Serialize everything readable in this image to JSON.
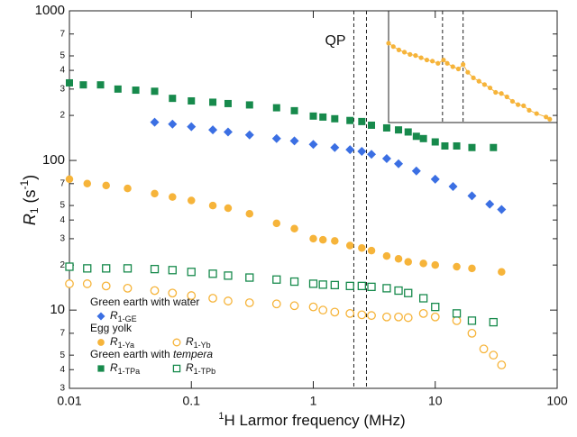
{
  "chart_data": {
    "type": "scatter",
    "log_x": true,
    "log_y": true,
    "xlabel": {
      "sup": "1",
      "main": "H Larmor frequency (MHz)"
    },
    "ylabel": {
      "main": "R",
      "sub": "1",
      "unit": " (s",
      "sup": "-1",
      "close": ")"
    },
    "xlim": [
      0.01,
      100
    ],
    "ylim": [
      3,
      1000
    ],
    "xticks": [
      0.01,
      0.1,
      1,
      10,
      100
    ],
    "yticks": [
      {
        "value": 1000,
        "label": "1000"
      },
      {
        "value": 700,
        "label": "7"
      },
      {
        "value": 500,
        "label": "5"
      },
      {
        "value": 400,
        "label": "4"
      },
      {
        "value": 300,
        "label": "3"
      },
      {
        "value": 200,
        "label": "2"
      },
      100,
      {
        "value": 70,
        "label": "7"
      },
      {
        "value": 50,
        "label": "5"
      },
      {
        "value": 40,
        "label": "4"
      },
      {
        "value": 30,
        "label": "3"
      },
      {
        "value": 20,
        "label": "2"
      },
      10,
      7,
      5,
      4,
      3
    ],
    "annotation": "QP",
    "qp_lines": [
      2.15,
      2.73
    ],
    "legend_position": "lower left",
    "groups": [
      {
        "title": "Green earth with water",
        "series": [
          {
            "name_main": "R",
            "name_sub": "1-GE",
            "marker": "diamond",
            "filled": true,
            "color": "#3b6fe3",
            "x": [
              0.05,
              0.07,
              0.1,
              0.15,
              0.2,
              0.3,
              0.5,
              0.7,
              1,
              1.5,
              2,
              2.5,
              3,
              4,
              5,
              7,
              10,
              14,
              20,
              28,
              35
            ],
            "values": [
              180,
              175,
              168,
              160,
              155,
              148,
              140,
              135,
              128,
              122,
              118,
              115,
              110,
              103,
              95,
              85,
              75,
              67,
              58,
              51,
              47
            ]
          }
        ]
      },
      {
        "title": "Egg yolk",
        "series": [
          {
            "name_main": "R",
            "name_sub": "1-Ya",
            "marker": "circle",
            "filled": true,
            "color": "#f6b43a",
            "x": [
              0.01,
              0.014,
              0.02,
              0.03,
              0.05,
              0.07,
              0.1,
              0.15,
              0.2,
              0.3,
              0.5,
              0.7,
              1,
              1.2,
              1.5,
              2,
              2.5,
              3,
              4,
              5,
              6,
              8,
              10,
              15,
              20,
              35
            ],
            "values": [
              75,
              70,
              68,
              65,
              60,
              57,
              54,
              50,
              48,
              44,
              38,
              35,
              30,
              29.5,
              29,
              27,
              26,
              25,
              23,
              22,
              21,
              20.5,
              20,
              19.5,
              19,
              18
            ]
          },
          {
            "name_main": "R",
            "name_sub": "1-Yb",
            "marker": "circle",
            "filled": false,
            "color": "#f6b43a",
            "x": [
              0.01,
              0.014,
              0.02,
              0.03,
              0.05,
              0.07,
              0.1,
              0.15,
              0.2,
              0.3,
              0.5,
              0.7,
              1,
              1.2,
              1.5,
              2,
              2.5,
              3,
              4,
              5,
              6,
              8,
              10,
              15,
              20,
              25,
              30,
              35
            ],
            "values": [
              15,
              15,
              14.5,
              14,
              13.5,
              13,
              12.5,
              12,
              11.5,
              11.2,
              11,
              10.7,
              10.5,
              10,
              9.7,
              9.5,
              9.3,
              9.2,
              9,
              9,
              8.9,
              9.5,
              9,
              8.5,
              7,
              5.5,
              5,
              4.3
            ]
          }
        ]
      },
      {
        "title": "Green earth with ",
        "title_italic": "tempera",
        "series": [
          {
            "name_main": "R",
            "name_sub": "1-TPa",
            "marker": "square",
            "filled": true,
            "color": "#178a4c",
            "x": [
              0.01,
              0.013,
              0.018,
              0.025,
              0.035,
              0.05,
              0.07,
              0.1,
              0.15,
              0.2,
              0.3,
              0.5,
              0.7,
              1,
              1.2,
              1.5,
              2,
              2.5,
              3,
              4,
              5,
              6,
              7,
              8,
              10,
              12,
              15,
              20,
              30
            ],
            "values": [
              330,
              320,
              320,
              300,
              295,
              290,
              260,
              250,
              245,
              240,
              235,
              225,
              215,
              198,
              195,
              190,
              185,
              182,
              172,
              165,
              160,
              155,
              145,
              140,
              133,
              125,
              125,
              122,
              122
            ]
          },
          {
            "name_main": "R",
            "name_sub": "1-TPb",
            "marker": "square",
            "filled": false,
            "color": "#178a4c",
            "x": [
              0.01,
              0.014,
              0.02,
              0.03,
              0.05,
              0.07,
              0.1,
              0.15,
              0.2,
              0.3,
              0.5,
              0.7,
              1,
              1.2,
              1.5,
              2,
              2.5,
              3,
              4,
              5,
              6,
              8,
              10,
              15,
              20,
              30
            ],
            "values": [
              19.5,
              19,
              19,
              19,
              18.8,
              18.5,
              18,
              17.5,
              17,
              16.5,
              16,
              15.5,
              15,
              14.8,
              14.7,
              14.5,
              14.5,
              14.3,
              14,
              13.5,
              13,
              12,
              10.5,
              9.5,
              8.5,
              8.3
            ]
          }
        ]
      }
    ],
    "inset": {
      "color": "#f6b43a",
      "xlim": [
        0,
        100
      ],
      "ylim": [
        0,
        100
      ],
      "vlines": [
        32,
        44.2
      ],
      "x": [
        0,
        2.8,
        6.1,
        9.4,
        12.7,
        16,
        19.3,
        22.7,
        26,
        29.3,
        32.6,
        34.8,
        38.1,
        41.4,
        44.2,
        47,
        50.3,
        53.6,
        56.9,
        60.2,
        63.5,
        66.9,
        70.2,
        73.5,
        76.8,
        80.1,
        83.4,
        87.8,
        93.4,
        95.6
      ],
      "values": [
        71,
        68,
        65,
        63,
        61,
        60,
        58,
        56,
        55,
        53,
        56,
        53,
        50,
        48,
        52,
        45,
        40,
        37,
        34,
        31,
        27,
        26,
        23,
        19,
        16,
        15,
        11,
        8,
        5,
        3
      ]
    }
  }
}
